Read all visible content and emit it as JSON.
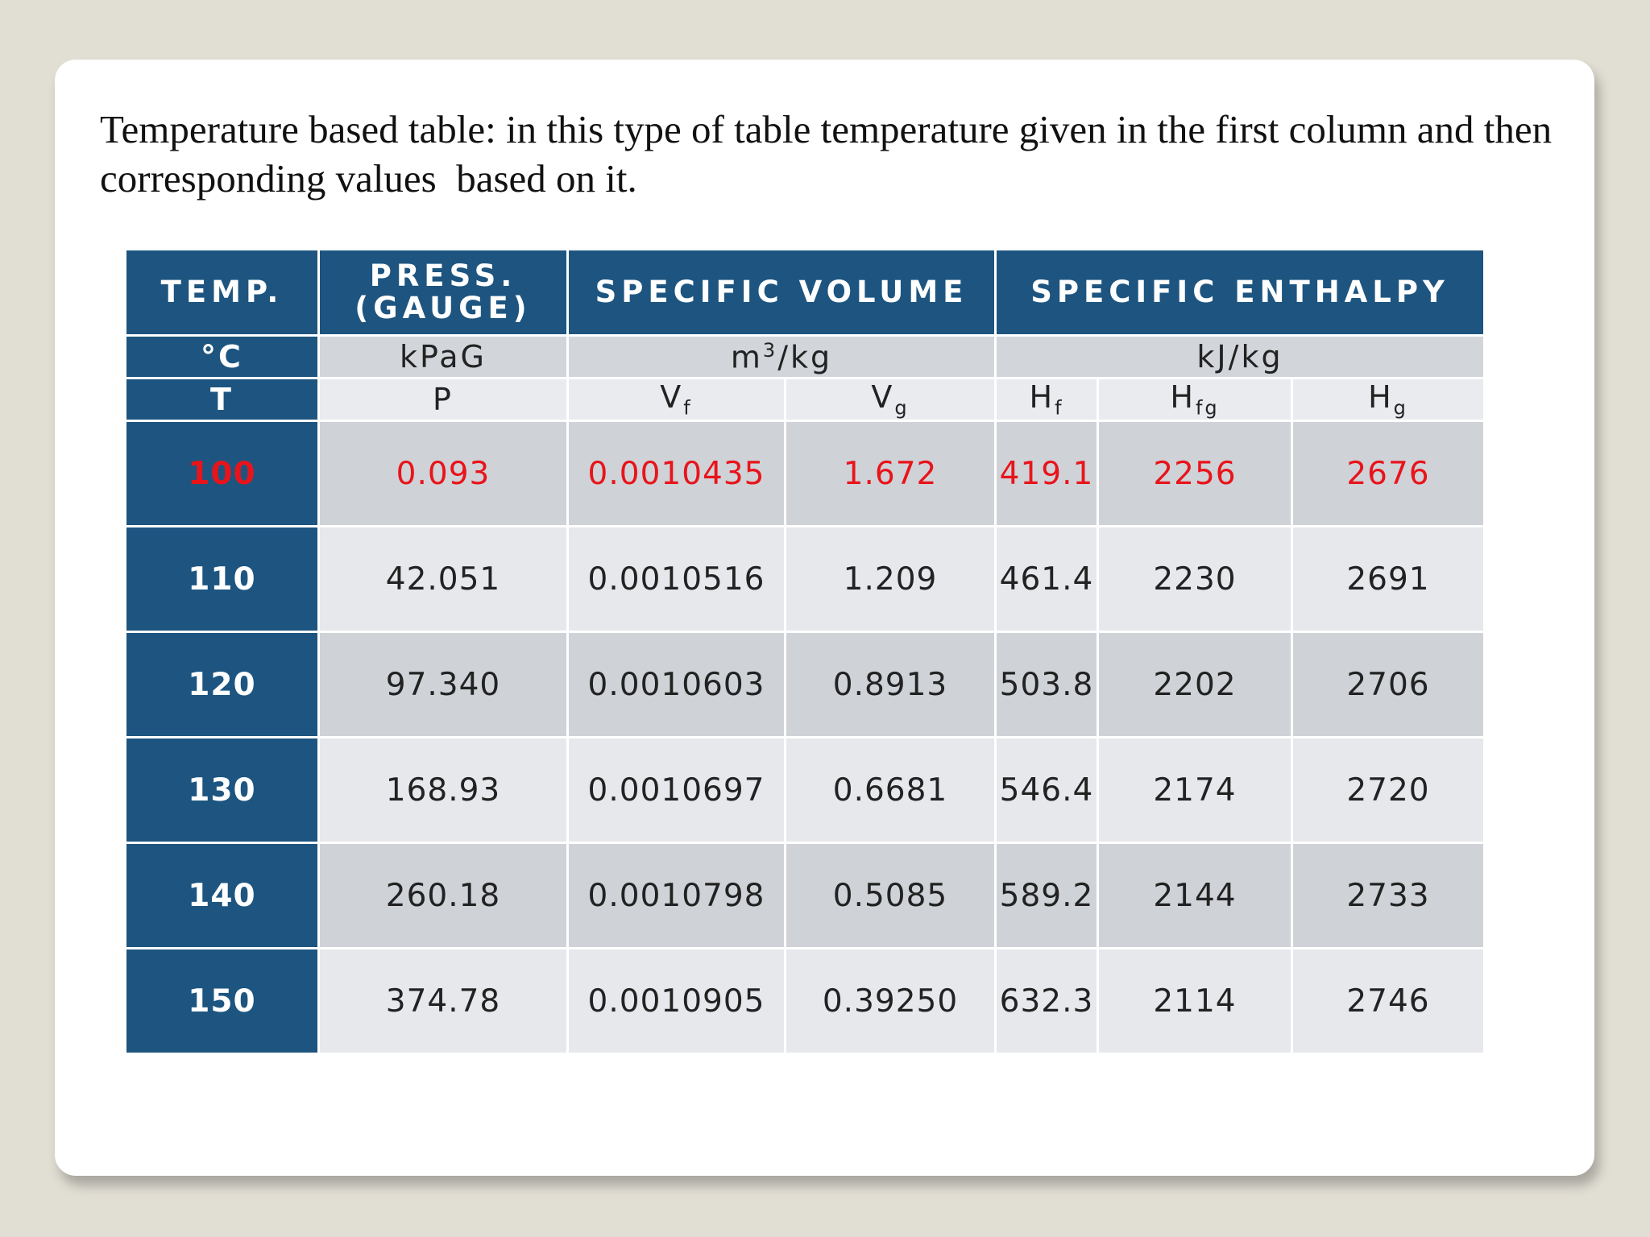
{
  "description": "Temperature based table: in this type of table temperature given in the first column and then corresponding values  based on it.",
  "table": {
    "header": [
      "TEMP.",
      "PRESS. (GAUGE)",
      "SPECIFIC VOLUME",
      "SPECIFIC ENTHALPY"
    ],
    "header_spans": [
      1,
      1,
      2,
      3
    ],
    "units": [
      "°C",
      "kPaG",
      {
        "base": "m",
        "sup": "3",
        "rest": "/kg"
      },
      "kJ/kg"
    ],
    "symbols": [
      {
        "base": "T"
      },
      {
        "base": "P"
      },
      {
        "base": "V",
        "sub": "f"
      },
      {
        "base": "V",
        "sub": "g"
      },
      {
        "base": "H",
        "sub": "f"
      },
      {
        "base": "H",
        "sub": "fg"
      },
      {
        "base": "H",
        "sub": "g"
      }
    ],
    "rows": [
      [
        "100",
        "0.093",
        "0.0010435",
        "1.672",
        "419.1",
        "2256",
        "2676"
      ],
      [
        "110",
        "42.051",
        "0.0010516",
        "1.209",
        "461.4",
        "2230",
        "2691"
      ],
      [
        "120",
        "97.340",
        "0.0010603",
        "0.8913",
        "503.8",
        "2202",
        "2706"
      ],
      [
        "130",
        "168.93",
        "0.0010697",
        "0.6681",
        "546.4",
        "2174",
        "2720"
      ],
      [
        "140",
        "260.18",
        "0.0010798",
        "0.5085",
        "589.2",
        "2144",
        "2733"
      ],
      [
        "150",
        "374.78",
        "0.0010905",
        "0.39250",
        "632.3",
        "2114",
        "2746"
      ]
    ],
    "highlight_row": 0
  }
}
